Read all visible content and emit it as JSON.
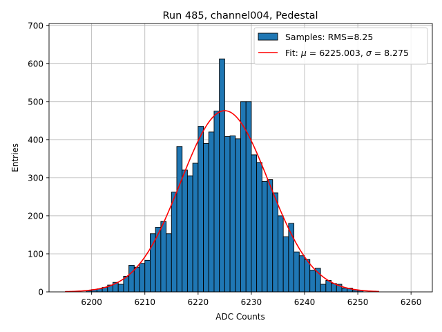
{
  "chart_data": {
    "type": "bar",
    "title": "Run 485, channel004, Pedestal",
    "xlabel": "ADC Counts",
    "ylabel": "Entries",
    "xlim": [
      6192,
      6264
    ],
    "ylim": [
      0,
      705
    ],
    "xticks": [
      6200,
      6210,
      6220,
      6230,
      6240,
      6250,
      6260
    ],
    "yticks": [
      0,
      100,
      200,
      300,
      400,
      500,
      600,
      700
    ],
    "grid": true,
    "legend_position": "top-right",
    "bin_width": 1,
    "bins": [
      6199,
      6200,
      6201,
      6202,
      6203,
      6204,
      6205,
      6206,
      6207,
      6208,
      6209,
      6210,
      6211,
      6212,
      6213,
      6214,
      6215,
      6216,
      6217,
      6218,
      6219,
      6220,
      6221,
      6222,
      6223,
      6224,
      6225,
      6226,
      6227,
      6228,
      6229,
      6230,
      6231,
      6232,
      6233,
      6234,
      6235,
      6236,
      6237,
      6238,
      6239,
      6240,
      6241,
      6242,
      6243,
      6244,
      6245,
      6246,
      6247,
      6248,
      6249,
      6250
    ],
    "counts": [
      3,
      6,
      8,
      12,
      18,
      25,
      20,
      41,
      70,
      65,
      75,
      83,
      153,
      170,
      185,
      153,
      262,
      382,
      320,
      305,
      338,
      435,
      390,
      420,
      475,
      612,
      408,
      410,
      402,
      500,
      500,
      360,
      340,
      290,
      295,
      260,
      200,
      145,
      180,
      105,
      95,
      85,
      57,
      62,
      20,
      30,
      22,
      20,
      10,
      10,
      5,
      4
    ],
    "series": [
      {
        "name": "Samples: RMS=8.25",
        "kind": "histogram",
        "color": "#1f77b4",
        "edgecolor": "#000000"
      },
      {
        "name": "Fit: μ = 6225.003, σ = 8.275",
        "kind": "gaussian",
        "color": "#ff0000",
        "mu": 6225.003,
        "sigma": 8.275,
        "amplitude": 476,
        "x_range": [
          6195,
          6254
        ]
      }
    ],
    "legend": {
      "hist_label_prefix": "Samples: RMS=8.25",
      "fit_label_prefix": "Fit: ",
      "fit_mu_symbol": "μ",
      "fit_mu_value": " = 6225.003, ",
      "fit_sigma_symbol": "σ",
      "fit_sigma_value": " = 8.275"
    }
  }
}
